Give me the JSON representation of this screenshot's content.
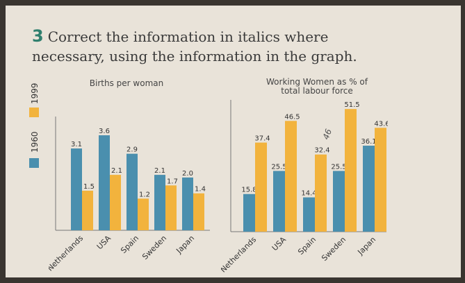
{
  "exercise": {
    "number": "3",
    "line1": "Correct the information in italics where",
    "line2": "necessary, using the information in the graph."
  },
  "legend": {
    "items": [
      {
        "label": "1960",
        "color": "#4a8fae"
      },
      {
        "label": "1999",
        "color": "#f2b33d"
      }
    ]
  },
  "annotation": {
    "text": "46"
  },
  "chart_data": [
    {
      "type": "bar",
      "title": "Births per woman",
      "categories": [
        "Netherlands",
        "USA",
        "Spain",
        "Sweden",
        "Japan"
      ],
      "series": [
        {
          "name": "1960",
          "values": [
            3.1,
            3.6,
            2.9,
            2.1,
            2.0
          ],
          "labels": [
            "3.1",
            "3.6",
            "2.9",
            "2.1",
            "2.0"
          ]
        },
        {
          "name": "1999",
          "values": [
            1.5,
            2.1,
            1.2,
            1.7,
            1.4
          ],
          "labels": [
            "1.5",
            "2.1",
            "1.2",
            "1.7",
            "1.4"
          ]
        }
      ],
      "ylim": [
        0,
        4.1
      ]
    },
    {
      "type": "bar",
      "title": "Working Women as % of total labour force",
      "categories": [
        "Netherlands",
        "USA",
        "Spain",
        "Sweden",
        "Japan"
      ],
      "series": [
        {
          "name": "1960",
          "values": [
            15.8,
            25.5,
            14.4,
            25.5,
            36.1
          ],
          "labels": [
            "15.8",
            "25.5",
            "14.4",
            "25.5",
            "36.1"
          ]
        },
        {
          "name": "1999",
          "values": [
            37.4,
            46.5,
            32.4,
            51.5,
            43.6
          ],
          "labels": [
            "37.4",
            "46.5",
            "32.4",
            "51.5",
            "43.6"
          ]
        }
      ],
      "ylim": [
        0,
        53
      ]
    }
  ]
}
